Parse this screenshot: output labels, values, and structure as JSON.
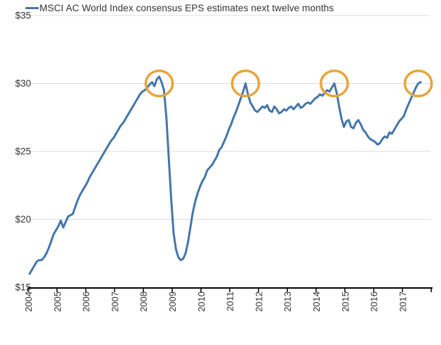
{
  "legend": {
    "label": "MSCI AC World Index consensus EPS estimates next twelve months"
  },
  "colors": {
    "line": "#4476AA",
    "annotation_circle": "#E8A43C",
    "gridline": "#DCDCDC",
    "axis": "#000000",
    "tick_label": "#333333"
  },
  "chart_data": {
    "type": "line",
    "title": "",
    "xlabel": "",
    "ylabel": "",
    "grid": "horizontal-only",
    "legend_position": "top-left",
    "ylim": [
      15,
      35
    ],
    "y_ticks": [
      {
        "value": 15,
        "label": "$15"
      },
      {
        "value": 20,
        "label": "$20"
      },
      {
        "value": 25,
        "label": "$25"
      },
      {
        "value": 30,
        "label": "$30"
      },
      {
        "value": 35,
        "label": "$35"
      }
    ],
    "x_tick_labels": [
      "2004",
      "2005",
      "2006",
      "2007",
      "2008",
      "2009",
      "2010",
      "2011",
      "2012",
      "2013",
      "2014",
      "2015",
      "2016",
      "2017"
    ],
    "x_tick_label_rotation_deg": -90,
    "series": [
      {
        "name": "MSCI AC World Index consensus EPS estimates next twelve months",
        "color": "#4476AA",
        "start_year": 2004,
        "frequency": "monthly",
        "values": [
          16.0,
          16.3,
          16.6,
          16.9,
          17.0,
          17.0,
          17.2,
          17.5,
          17.9,
          18.4,
          18.9,
          19.2,
          19.5,
          19.9,
          19.4,
          19.8,
          20.2,
          20.3,
          20.4,
          20.9,
          21.4,
          21.8,
          22.1,
          22.4,
          22.7,
          23.1,
          23.4,
          23.7,
          24.0,
          24.3,
          24.6,
          24.9,
          25.2,
          25.5,
          25.8,
          26.0,
          26.3,
          26.6,
          26.9,
          27.1,
          27.4,
          27.7,
          28.0,
          28.3,
          28.6,
          28.9,
          29.2,
          29.4,
          29.5,
          29.7,
          29.9,
          30.1,
          29.8,
          30.3,
          30.5,
          30.1,
          29.5,
          27.5,
          24.5,
          21.5,
          19.0,
          17.8,
          17.2,
          17.0,
          17.1,
          17.5,
          18.3,
          19.4,
          20.5,
          21.3,
          21.9,
          22.4,
          22.8,
          23.1,
          23.6,
          23.8,
          24.0,
          24.3,
          24.6,
          25.1,
          25.3,
          25.7,
          26.1,
          26.6,
          27.0,
          27.5,
          27.9,
          28.4,
          28.9,
          29.4,
          30.0,
          29.2,
          28.6,
          28.3,
          28.0,
          27.9,
          28.1,
          28.3,
          28.2,
          28.4,
          28.0,
          27.9,
          28.3,
          28.1,
          27.8,
          27.9,
          28.1,
          28.0,
          28.2,
          28.3,
          28.1,
          28.3,
          28.5,
          28.2,
          28.3,
          28.5,
          28.6,
          28.5,
          28.7,
          28.9,
          29.0,
          29.2,
          29.1,
          29.3,
          29.5,
          29.4,
          29.7,
          30.0,
          29.3,
          28.3,
          27.4,
          26.8,
          27.2,
          27.3,
          26.8,
          26.7,
          27.1,
          27.3,
          27.0,
          26.6,
          26.4,
          26.1,
          25.9,
          25.8,
          25.7,
          25.5,
          25.6,
          25.9,
          26.1,
          26.0,
          26.4,
          26.3,
          26.6,
          26.9,
          27.2,
          27.4,
          27.6,
          28.1,
          28.5,
          28.9,
          29.3,
          29.7,
          30.0,
          30.1
        ]
      }
    ],
    "annotations": {
      "shape": "circle",
      "color": "#E8A43C",
      "meaning": "peaks near $30 highlighted",
      "value": 30,
      "month_indices": [
        54,
        90,
        127,
        162
      ],
      "approx_dates": [
        "mid-2008",
        "mid-2011",
        "mid-2014",
        "mid-2017"
      ]
    }
  }
}
